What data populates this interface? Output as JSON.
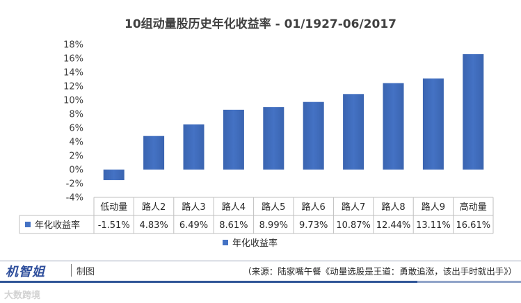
{
  "chart_data": {
    "type": "bar",
    "title": "10组动量股历史年化收益率 - 01/1927-06/2017",
    "categories": [
      "低动量",
      "路人2",
      "路人3",
      "路人4",
      "路人5",
      "路人6",
      "路人7",
      "路人8",
      "路人9",
      "高动量"
    ],
    "series": [
      {
        "name": "年化收益率",
        "values": [
          -1.51,
          4.83,
          6.49,
          8.61,
          8.99,
          9.73,
          10.87,
          12.44,
          13.11,
          16.61
        ],
        "value_labels": [
          "-1.51%",
          "4.83%",
          "6.49%",
          "8.61%",
          "8.99%",
          "9.73%",
          "10.87%",
          "12.44%",
          "13.11%",
          "16.61%"
        ],
        "color": "#4472c4"
      }
    ],
    "y_ticks": [
      "18%",
      "16%",
      "14%",
      "12%",
      "10%",
      "8%",
      "6%",
      "4%",
      "2%",
      "0%",
      "-2%",
      "-4%"
    ],
    "ylim": [
      -4,
      18
    ],
    "ytick_step": 2,
    "grid": false,
    "legend": "bottom",
    "data_table": true
  },
  "footer": {
    "brand": "机智姐",
    "made_label": "制图",
    "source": "（来源：陆家嘴午餐《动量选股是王道：勇敢追涨，该出手时就出手》）",
    "watermark": "大数跨境"
  }
}
